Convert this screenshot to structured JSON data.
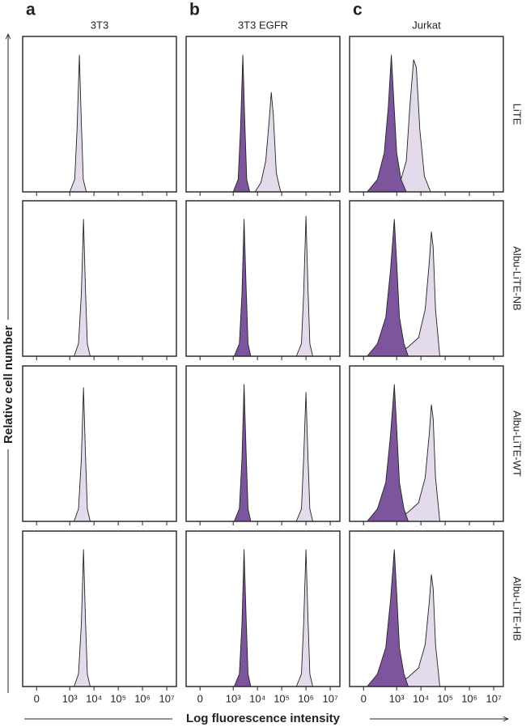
{
  "chart_data": {
    "type": "area",
    "columns": [
      {
        "letter": "a",
        "title": "3T3"
      },
      {
        "letter": "b",
        "title": "3T3 EGFR"
      },
      {
        "letter": "c",
        "title": "Jurkat"
      }
    ],
    "rows": [
      "LiTE",
      "Albu-LiTE-NB",
      "Albu-LiTE-WT",
      "Albu-LiTE-HB"
    ],
    "ylabel": "Relative cell number",
    "xlabel": "Log fluorescence intensity",
    "xscale": "asinh",
    "xscale_cofactor": 43,
    "xlim": [
      -150,
      25000000
    ],
    "ylim": [
      0,
      100
    ],
    "xticks": [
      0,
      {
        "value": 1000,
        "label": "10³"
      },
      {
        "value": 10000,
        "label": "10⁴"
      },
      {
        "value": 100000,
        "label": "10⁵"
      },
      {
        "value": 1000000,
        "label": "10⁶"
      },
      {
        "value": 10000000,
        "label": "10⁷"
      }
    ],
    "panels": [
      [
        {
          "series": [
            {
              "color": "#e3daec",
              "x": [
                1000,
                1600,
                2000,
                2500,
                3000,
                3600,
                4800
              ],
              "values": [
                0,
                8,
                40,
                88,
                45,
                8,
                0
              ]
            }
          ]
        },
        {
          "series": [
            {
              "color": "#e3daec",
              "x": [
                8000,
                14000,
                22000,
                30000,
                37000,
                45000,
                60000,
                90000
              ],
              "values": [
                0,
                6,
                20,
                45,
                64,
                50,
                12,
                0
              ]
            },
            {
              "color": "#7d559c",
              "x": [
                1000,
                1600,
                2000,
                2500,
                3000,
                3600,
                4800
              ],
              "values": [
                0,
                8,
                40,
                88,
                45,
                8,
                0
              ]
            }
          ]
        },
        {
          "series": [
            {
              "color": "#e3daec",
              "x": [
                500,
                1500,
                2500,
                3500,
                5000,
                6500,
                9000,
                14000,
                25000
              ],
              "values": [
                0,
                8,
                20,
                55,
                85,
                80,
                40,
                10,
                0
              ]
            },
            {
              "color": "#7d559c",
              "x": [
                30,
                150,
                300,
                450,
                600,
                750,
                1000,
                1500,
                2500
              ],
              "values": [
                0,
                8,
                25,
                55,
                88,
                60,
                25,
                8,
                0
              ]
            }
          ]
        }
      ],
      [
        {
          "series": [
            {
              "color": "#e3daec",
              "x": [
                1500,
                2300,
                3000,
                3700,
                4400,
                5300,
                7000
              ],
              "values": [
                0,
                8,
                40,
                88,
                45,
                8,
                0
              ]
            }
          ]
        },
        {
          "series": [
            {
              "color": "#e3daec",
              "x": [
                400000,
                650000,
                800000,
                1000000,
                1200000,
                1450000,
                1900000
              ],
              "values": [
                0,
                8,
                40,
                90,
                45,
                8,
                0
              ]
            },
            {
              "color": "#7d559c",
              "x": [
                1100,
                1800,
                2300,
                2800,
                3400,
                4100,
                5300
              ],
              "values": [
                0,
                8,
                40,
                88,
                45,
                8,
                0
              ]
            }
          ]
        },
        {
          "series": [
            {
              "color": "#e3daec",
              "x": [
                800,
                3000,
                8000,
                15000,
                22000,
                27000,
                32000,
                40000,
                60000
              ],
              "values": [
                0,
                6,
                12,
                30,
                60,
                80,
                70,
                30,
                0
              ]
            },
            {
              "color": "#7d559c",
              "x": [
                30,
                150,
                350,
                550,
                800,
                1000,
                1300,
                2000,
                3000
              ],
              "values": [
                0,
                8,
                25,
                55,
                88,
                60,
                25,
                8,
                0
              ]
            }
          ]
        }
      ],
      [
        {
          "series": [
            {
              "color": "#e3daec",
              "x": [
                1500,
                2300,
                3000,
                3700,
                4400,
                5300,
                7000
              ],
              "values": [
                0,
                8,
                40,
                86,
                45,
                8,
                0
              ]
            }
          ]
        },
        {
          "series": [
            {
              "color": "#e3daec",
              "x": [
                400000,
                650000,
                800000,
                1000000,
                1200000,
                1450000,
                1900000
              ],
              "values": [
                0,
                8,
                40,
                83,
                42,
                8,
                0
              ]
            },
            {
              "color": "#7d559c",
              "x": [
                1100,
                1800,
                2300,
                2800,
                3400,
                4100,
                5300
              ],
              "values": [
                0,
                8,
                40,
                88,
                45,
                8,
                0
              ]
            }
          ]
        },
        {
          "series": [
            {
              "color": "#e3daec",
              "x": [
                800,
                3000,
                8000,
                15000,
                22000,
                27000,
                32000,
                40000,
                60000
              ],
              "values": [
                0,
                6,
                12,
                28,
                56,
                75,
                66,
                28,
                0
              ]
            },
            {
              "color": "#7d559c",
              "x": [
                30,
                150,
                350,
                550,
                800,
                1000,
                1300,
                2000,
                3000
              ],
              "values": [
                0,
                8,
                25,
                55,
                88,
                60,
                25,
                8,
                0
              ]
            }
          ]
        }
      ],
      [
        {
          "series": [
            {
              "color": "#e3daec",
              "x": [
                1500,
                2300,
                3000,
                3700,
                4400,
                5300,
                7000
              ],
              "values": [
                0,
                8,
                40,
                88,
                45,
                8,
                0
              ]
            }
          ]
        },
        {
          "series": [
            {
              "color": "#e3daec",
              "x": [
                400000,
                650000,
                800000,
                1000000,
                1200000,
                1450000,
                1900000
              ],
              "values": [
                0,
                8,
                40,
                88,
                45,
                8,
                0
              ]
            },
            {
              "color": "#7d559c",
              "x": [
                1100,
                1800,
                2300,
                2800,
                3400,
                4100,
                5300
              ],
              "values": [
                0,
                8,
                40,
                88,
                45,
                8,
                0
              ]
            }
          ]
        },
        {
          "series": [
            {
              "color": "#e3daec",
              "x": [
                800,
                3000,
                8000,
                15000,
                22000,
                27000,
                32000,
                40000,
                60000
              ],
              "values": [
                0,
                6,
                12,
                27,
                54,
                72,
                63,
                27,
                0
              ]
            },
            {
              "color": "#7d559c",
              "x": [
                30,
                150,
                350,
                550,
                800,
                1000,
                1300,
                2000,
                3000
              ],
              "values": [
                0,
                8,
                25,
                55,
                88,
                60,
                25,
                8,
                0
              ]
            }
          ]
        }
      ]
    ]
  }
}
